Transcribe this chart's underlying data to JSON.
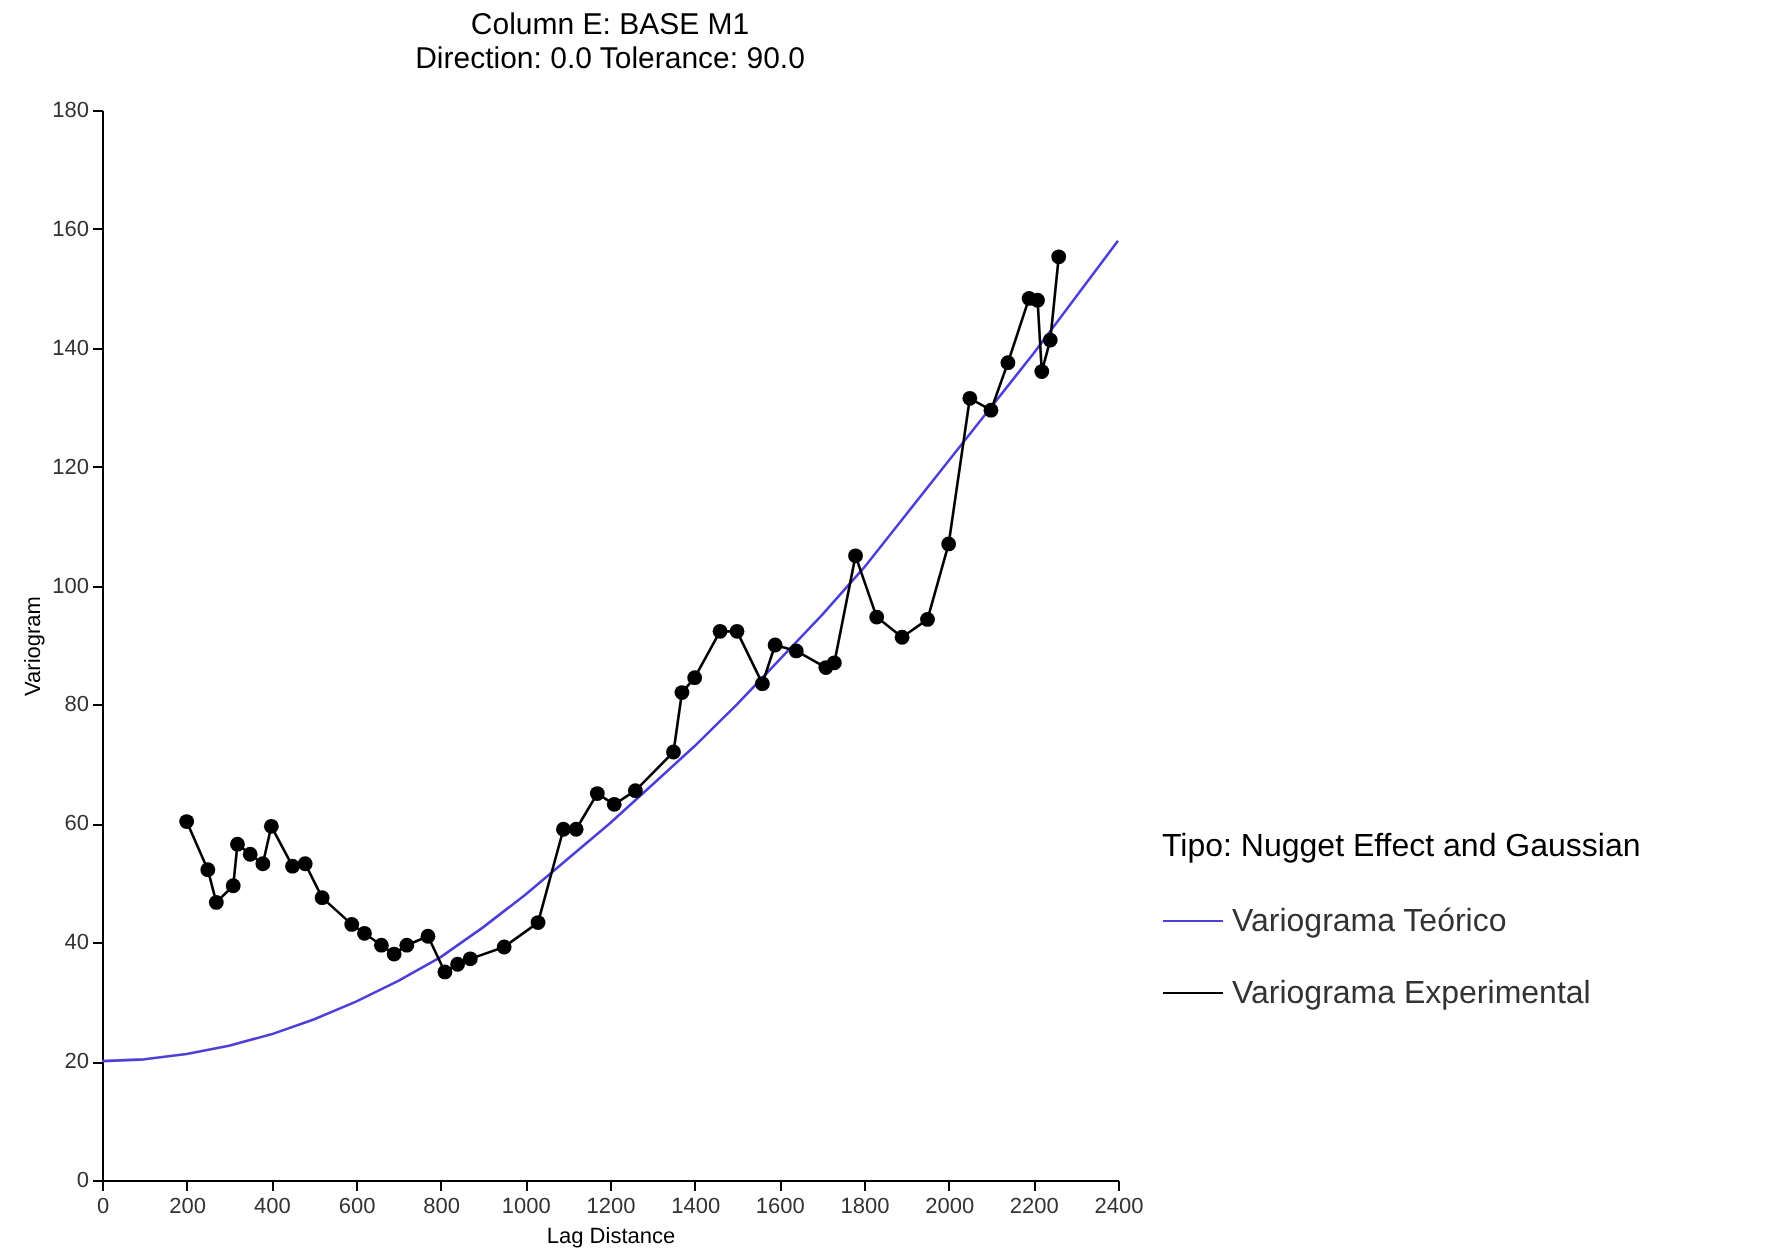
{
  "chart_data": {
    "type": "line",
    "title": "Column E:  BASE M1",
    "subtitle": "Direction: 0.0   Tolerance: 90.0",
    "xlabel": "Lag Distance",
    "ylabel": "Variogram",
    "legend_title": "Tipo: Nugget Effect and Gaussian",
    "legend": "right",
    "grid": false,
    "line_style": "solid",
    "xlim": [
      0,
      2400
    ],
    "xticks": [
      0,
      200,
      400,
      600,
      800,
      1000,
      1200,
      1400,
      1600,
      1800,
      2000,
      2200,
      2400
    ],
    "ylim": [
      0,
      180
    ],
    "yticks": [
      0,
      20,
      40,
      60,
      80,
      100,
      120,
      140,
      160,
      180
    ],
    "series": [
      {
        "name": "Variograma Teórico",
        "color": "#4b3fd6",
        "marker": "none",
        "x": [
          0,
          100,
          200,
          300,
          400,
          500,
          600,
          700,
          800,
          900,
          1000,
          1100,
          1200,
          1300,
          1400,
          1500,
          1600,
          1700,
          1800,
          1900,
          2000,
          2100,
          2200,
          2300,
          2400
        ],
        "values": [
          20,
          20.3,
          21.2,
          22.6,
          24.5,
          27,
          30,
          33.5,
          37.5,
          42.5,
          48,
          54,
          60,
          66.5,
          73,
          80,
          87.5,
          95,
          103,
          112,
          121,
          130,
          139,
          148.5,
          158
        ]
      },
      {
        "name": "Variograma Experimental",
        "color": "#000000",
        "marker": "circle",
        "x": [
          200,
          250,
          270,
          310,
          320,
          350,
          380,
          400,
          450,
          480,
          520,
          590,
          620,
          660,
          690,
          720,
          770,
          810,
          840,
          870,
          950,
          1030,
          1090,
          1120,
          1170,
          1210,
          1260,
          1350,
          1370,
          1400,
          1460,
          1500,
          1560,
          1590,
          1640,
          1710,
          1730,
          1780,
          1830,
          1890,
          1950,
          2000,
          2050,
          2100,
          2140,
          2190,
          2210,
          2220,
          2240,
          2260
        ],
        "values": [
          60.3,
          52.2,
          46.7,
          49.5,
          56.5,
          54.8,
          53.2,
          59.5,
          52.8,
          53.2,
          47.5,
          43,
          41.5,
          39.5,
          38,
          39.5,
          41,
          35,
          36.3,
          37.2,
          39.2,
          43.3,
          59,
          59,
          65,
          63.2,
          65.5,
          72,
          82,
          84.5,
          92.3,
          92.3,
          83.5,
          90,
          89,
          86.2,
          87,
          105,
          94.7,
          91.3,
          94.3,
          107,
          131.5,
          129.5,
          137.5,
          148.3,
          148,
          136,
          141.3,
          155.3
        ]
      }
    ]
  }
}
